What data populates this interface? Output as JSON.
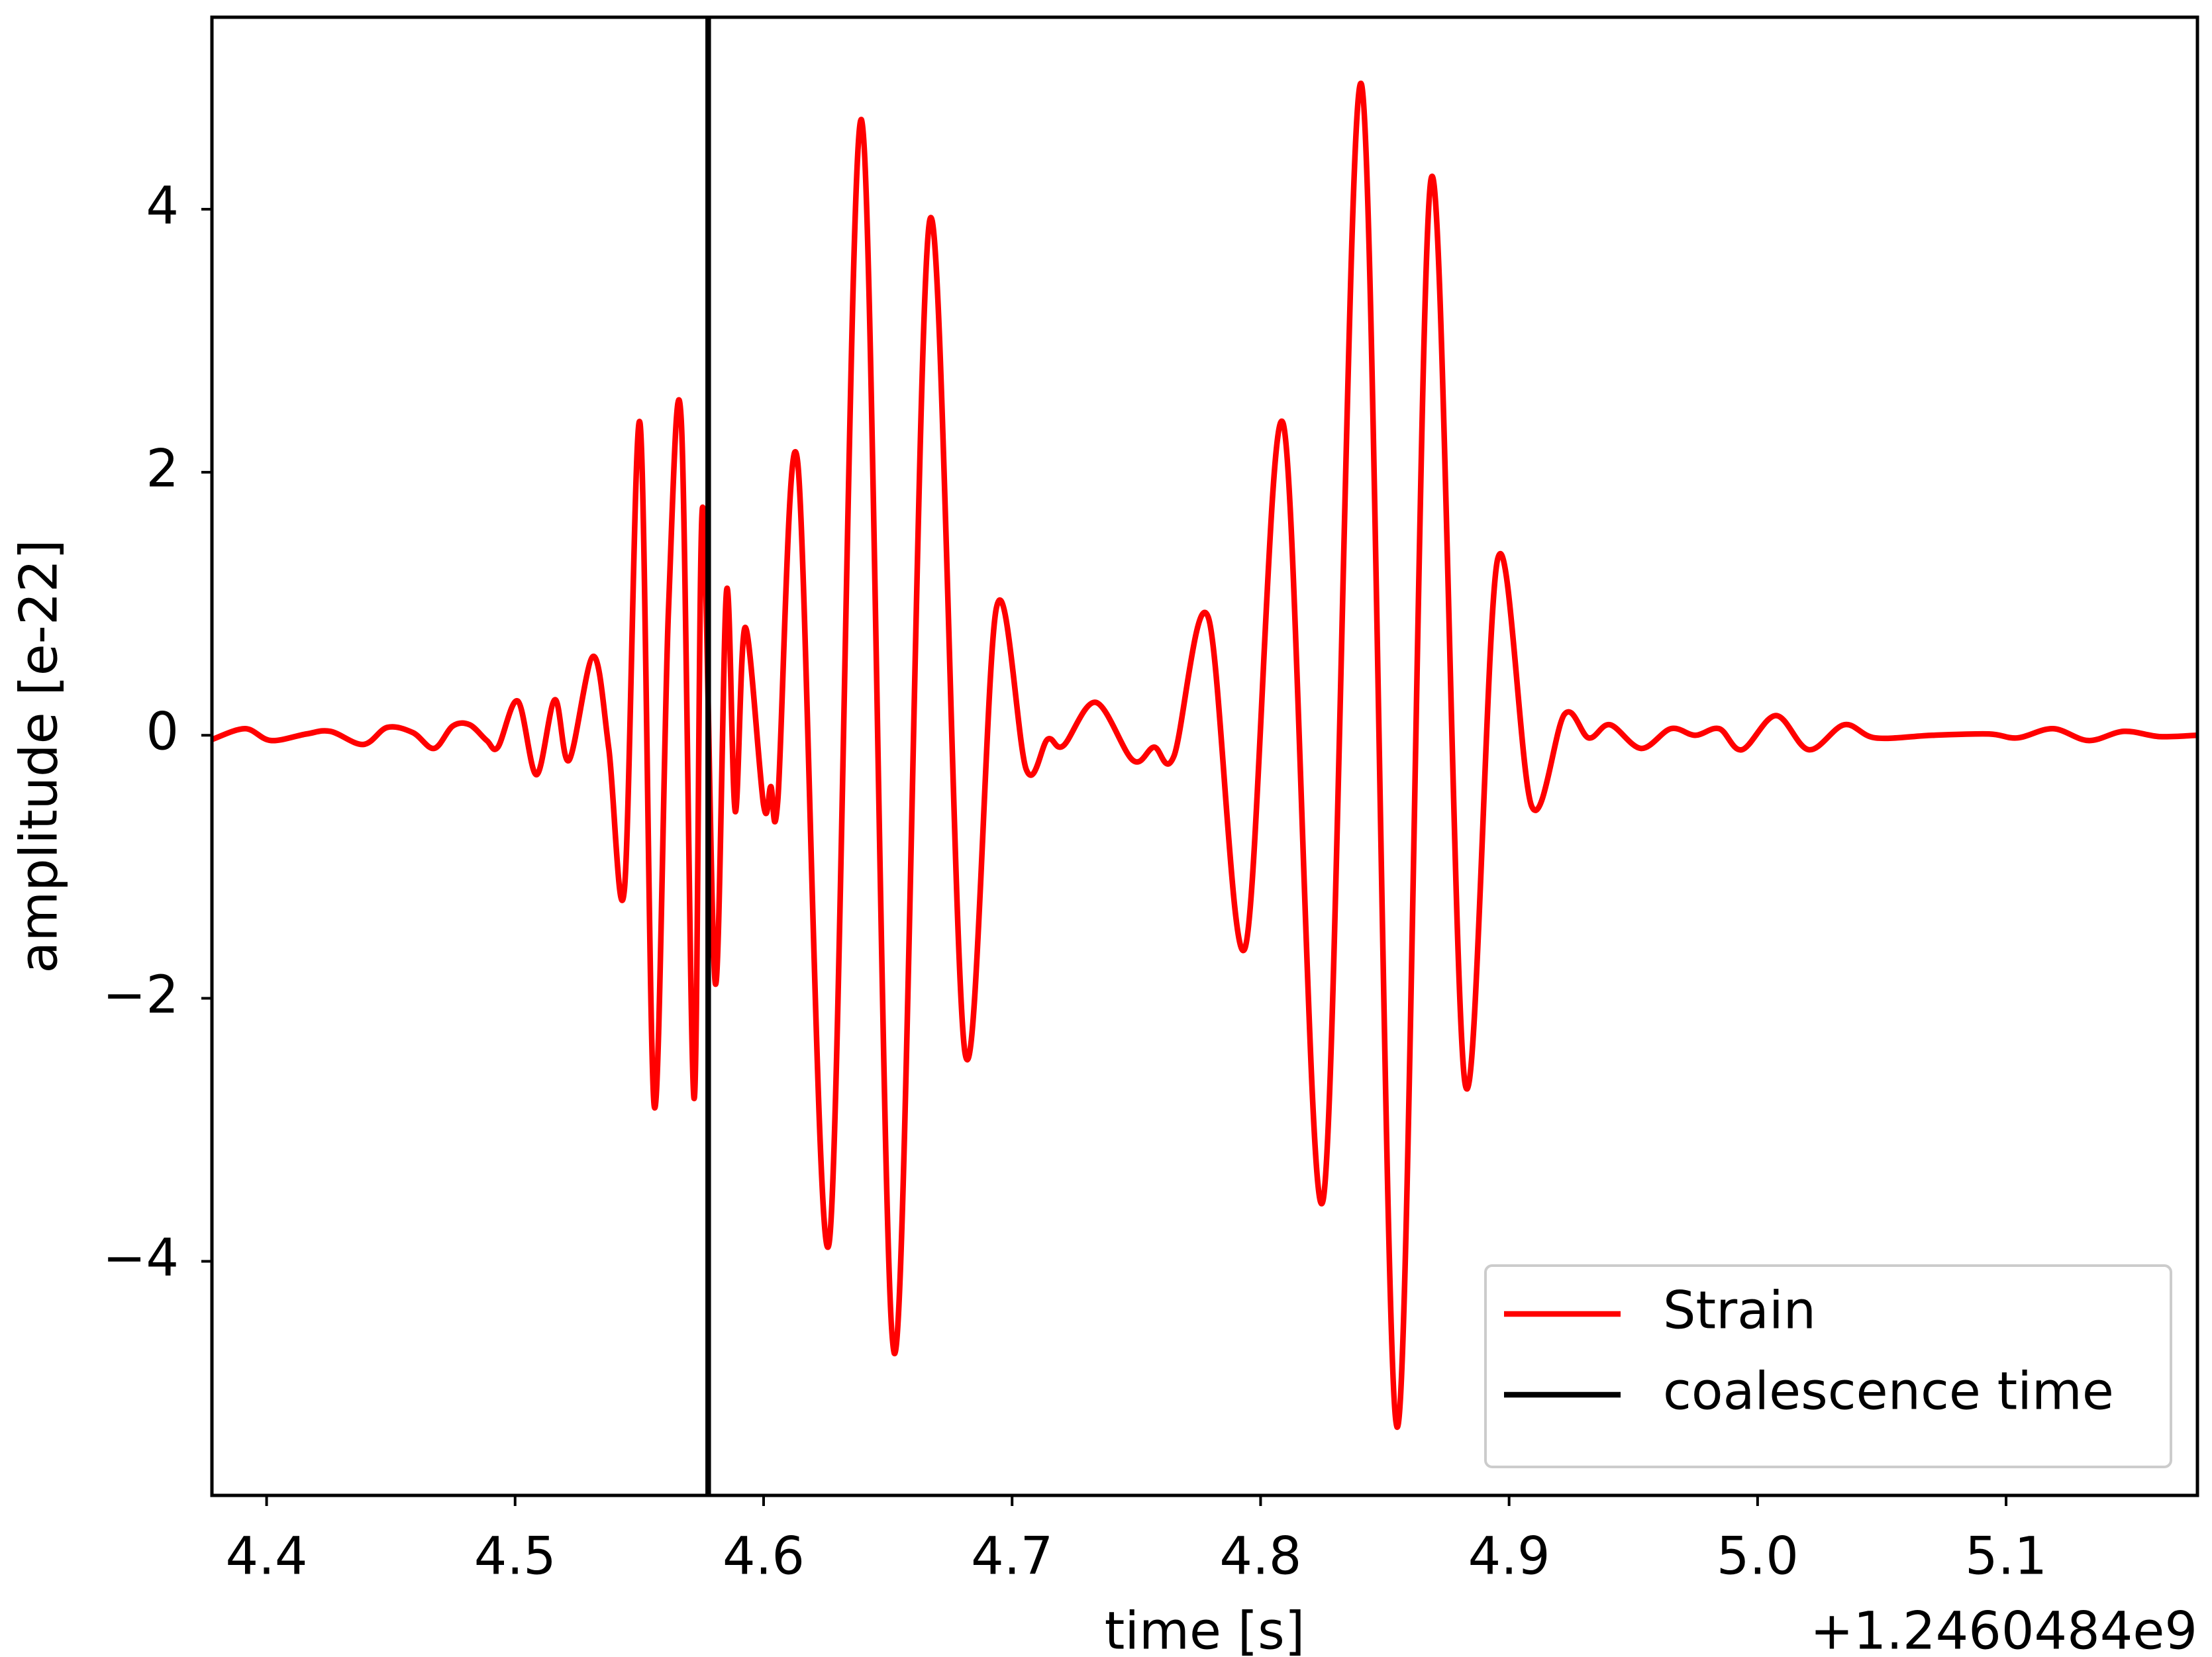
{
  "chart_data": {
    "type": "line",
    "xlabel": "time [s]",
    "ylabel": "amplitude [e-22]",
    "x_offset_label": "+1.2460484e9",
    "xlim": [
      4.378,
      5.177
    ],
    "ylim": [
      -5.78,
      5.46
    ],
    "xticks": [
      4.4,
      4.5,
      4.6,
      4.7,
      4.8,
      4.9,
      {
        "value": 5.0,
        "label": "5.0"
      },
      5.1
    ],
    "yticks": [
      {
        "value": -4,
        "label": "−4"
      },
      {
        "value": -2,
        "label": "−2"
      },
      0,
      2,
      4
    ],
    "legend": "lower right",
    "x": [
      4.3783,
      4.3914,
      4.4017,
      4.416,
      4.4257,
      4.4389,
      4.4486,
      4.4589,
      4.4674,
      4.4749,
      4.4817,
      4.4886,
      4.4931,
      4.5011,
      4.5086,
      4.516,
      4.5217,
      4.5314,
      4.5377,
      4.544,
      4.5503,
      4.556,
      4.5617,
      4.5669,
      4.572,
      4.5754,
      4.5806,
      4.5851,
      4.5886,
      4.5926,
      4.6,
      4.6029,
      4.6057,
      4.6137,
      4.6263,
      4.6394,
      4.6526,
      4.6669,
      4.6811,
      4.6937,
      4.7057,
      4.7143,
      4.7206,
      4.7337,
      4.7486,
      4.7571,
      4.7651,
      4.7789,
      4.7937,
      4.8091,
      4.8251,
      4.8406,
      4.8549,
      4.8686,
      4.8823,
      4.8954,
      4.9091,
      4.9223,
      4.932,
      4.9406,
      4.9531,
      4.9651,
      4.9749,
      4.9846,
      4.9937,
      5.0074,
      5.0206,
      5.0349,
      5.0474,
      5.0703,
      5.0931,
      5.1046,
      5.1189,
      5.1331,
      5.1474,
      5.1617,
      5.1766
    ],
    "series": [
      {
        "name": "Strain",
        "color": "#ff0000",
        "values": [
          -0.03,
          0.05,
          -0.04,
          0.01,
          0.03,
          -0.07,
          0.06,
          0.02,
          -0.1,
          0.07,
          0.08,
          -0.04,
          -0.09,
          0.26,
          -0.3,
          0.27,
          -0.19,
          0.6,
          -0.1,
          -1.17,
          2.37,
          -2.82,
          0.94,
          2.38,
          -2.76,
          1.73,
          -1.89,
          1.1,
          -0.58,
          0.82,
          -0.53,
          -0.39,
          -0.5,
          2.08,
          -3.87,
          4.68,
          -4.7,
          3.92,
          -2.42,
          0.97,
          -0.26,
          -0.03,
          -0.08,
          0.25,
          -0.19,
          -0.09,
          -0.16,
          0.9,
          -1.62,
          2.37,
          -3.54,
          4.95,
          -5.26,
          4.23,
          -2.65,
          1.34,
          -0.54,
          0.16,
          -0.02,
          0.08,
          -0.1,
          0.05,
          0.0,
          0.05,
          -0.11,
          0.15,
          -0.11,
          0.08,
          -0.02,
          0.0,
          0.01,
          -0.02,
          0.05,
          -0.04,
          0.03,
          -0.01,
          0.0
        ]
      }
    ],
    "vlines": [
      {
        "name": "coalescence time",
        "x": 4.5777,
        "color": "#000000"
      }
    ]
  }
}
